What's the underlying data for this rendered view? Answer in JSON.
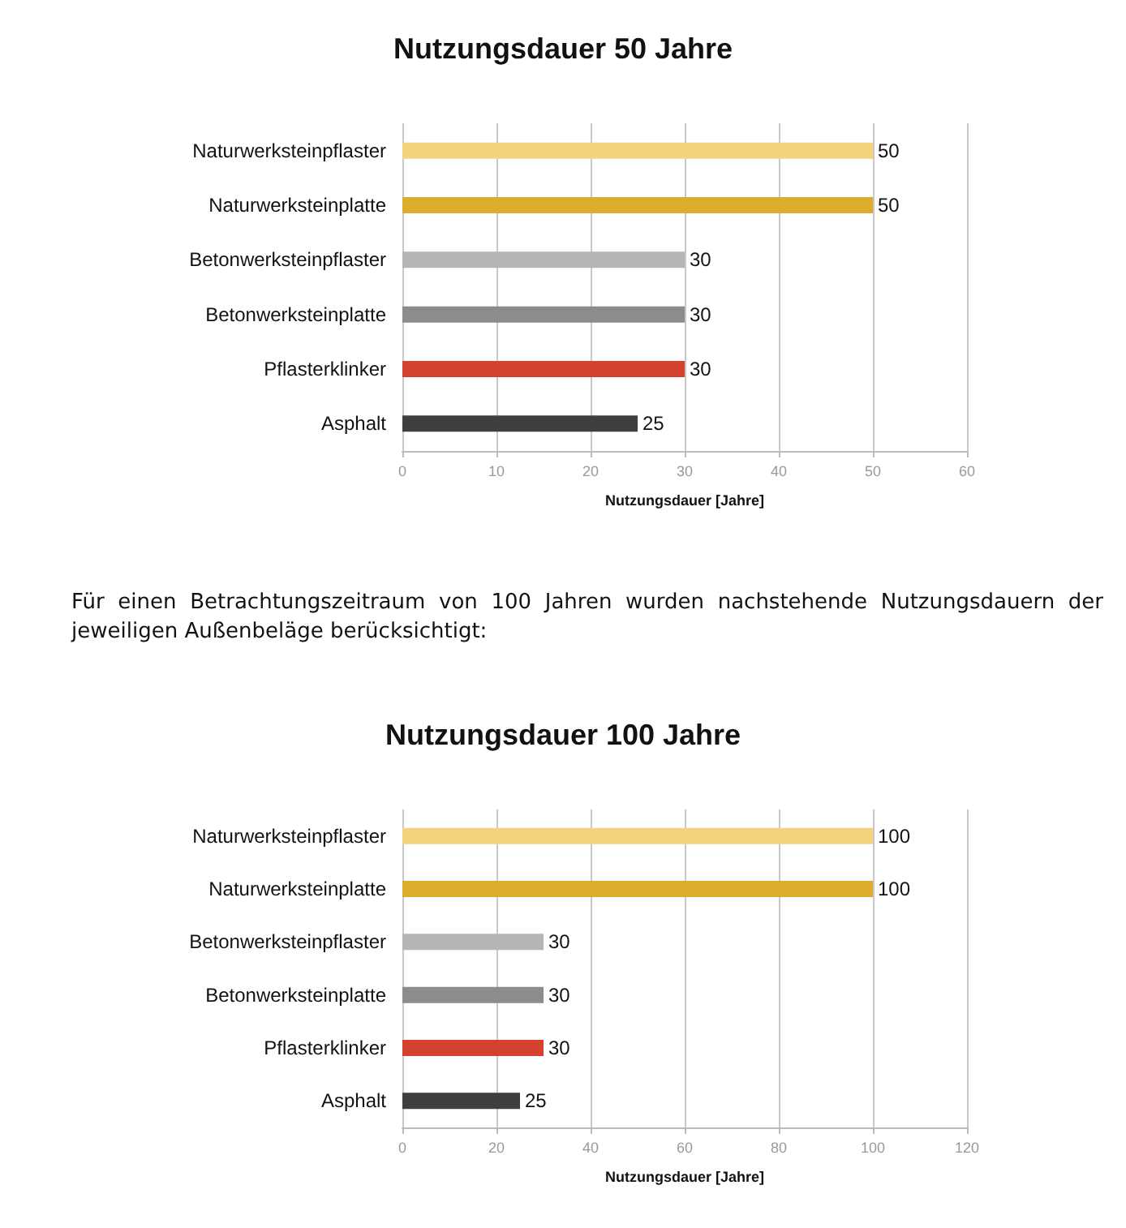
{
  "chart_data": [
    {
      "type": "bar",
      "orientation": "horizontal",
      "title": "Nutzungsdauer 50 Jahre",
      "xlabel": "Nutzungsdauer [Jahre]",
      "categories": [
        "Naturwerksteinpflaster",
        "Naturwerksteinplatte",
        "Betonwerksteinpflaster",
        "Betonwerksteinplatte",
        "Pflasterklinker",
        "Asphalt"
      ],
      "values": [
        50,
        50,
        30,
        30,
        30,
        25
      ],
      "colors": [
        "#f3d37c",
        "#dcad2c",
        "#b5b5b5",
        "#8c8c8c",
        "#d4412f",
        "#3f3f3f"
      ],
      "xlim": [
        0,
        60
      ],
      "xticks": [
        0,
        10,
        20,
        30,
        40,
        50,
        60
      ],
      "grid": "x",
      "data_labels": true
    },
    {
      "type": "bar",
      "orientation": "horizontal",
      "title": "Nutzungsdauer 100 Jahre",
      "xlabel": "Nutzungsdauer [Jahre]",
      "annotations": [
        "Für einen Betrachtungszeitraum von 100 Jahren wurden nachstehende Nutzungsdauern der jeweiligen Außenbeläge berücksichtigt:"
      ],
      "categories": [
        "Naturwerksteinpflaster",
        "Naturwerksteinplatte",
        "Betonwerksteinpflaster",
        "Betonwerksteinplatte",
        "Pflasterklinker",
        "Asphalt"
      ],
      "values": [
        100,
        100,
        30,
        30,
        30,
        25
      ],
      "colors": [
        "#f3d37c",
        "#dcad2c",
        "#b5b5b5",
        "#8c8c8c",
        "#d4412f",
        "#3f3f3f"
      ],
      "xlim": [
        0,
        120
      ],
      "xticks": [
        0,
        20,
        40,
        60,
        80,
        100,
        120
      ],
      "grid": "x",
      "data_labels": true
    }
  ]
}
